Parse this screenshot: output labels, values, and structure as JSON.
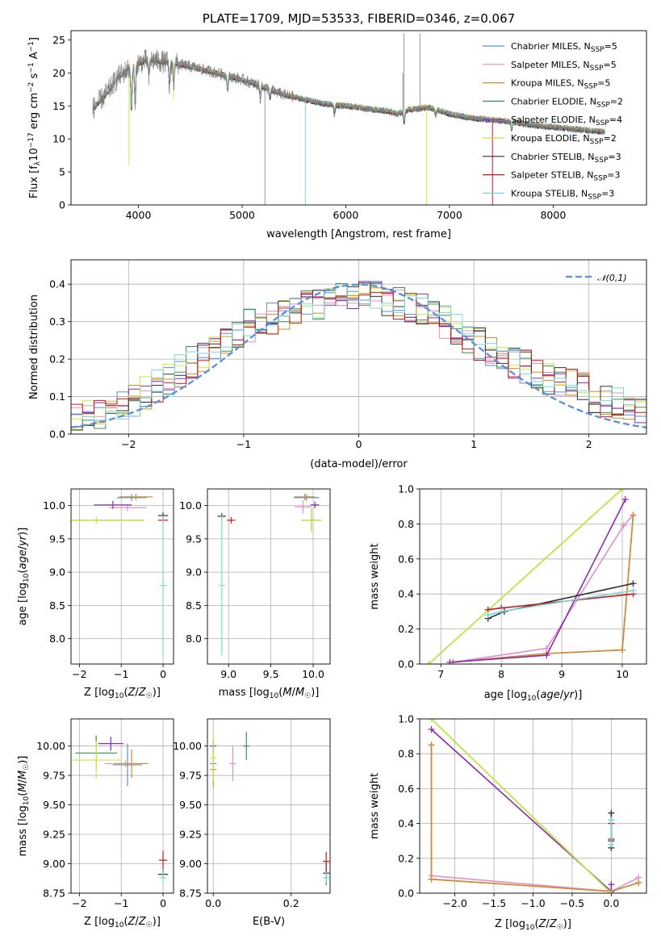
{
  "colors": {
    "Chabrier MILES": "#5b8fd6",
    "Salpeter MILES": "#e38fc6",
    "Kroupa MILES": "#d98a2b",
    "Chabrier ELODIE": "#3f8f55",
    "Salpeter ELODIE": "#8b2bb0",
    "Kroupa ELODIE": "#c8ea3c",
    "Chabrier STELIB": "#333333",
    "Salpeter STELIB": "#c81818",
    "Kroupa STELIB": "#7ad8dc",
    "normal": "#5b8fd6",
    "data": "#808080",
    "grid": "#b0b0b0"
  },
  "chart_data": [
    {
      "id": "spectrum",
      "type": "line",
      "title": "PLATE=1709, MJD=53533, FIBERID=0346, z=0.067",
      "xlabel": "wavelength [Angstrom, rest frame]",
      "ylabel": "Flux [f_λ 10^-17 erg cm^-2 s^-1 A^-1]",
      "xlim": [
        3350,
        8900
      ],
      "ylim": [
        0,
        26.4
      ],
      "xticks": [
        4000,
        5000,
        6000,
        7000,
        8000
      ],
      "yticks": [
        0,
        5,
        10,
        15,
        20,
        25
      ],
      "grid": false,
      "legend_position": "top-right",
      "legend": [
        "Chabrier MILES, N_SSP=5",
        "Salpeter MILES, N_SSP=5",
        "Kroupa MILES, N_SSP=5",
        "Chabrier ELODIE, N_SSP=2",
        "Salpeter ELODIE, N_SSP=4",
        "Kroupa ELODIE, N_SSP=2",
        "Chabrier STELIB, N_SSP=3",
        "Salpeter STELIB, N_SSP=3",
        "Kroupa STELIB, N_SSP=3"
      ],
      "continuum": [
        [
          3560,
          14.6
        ],
        [
          3700,
          17.0
        ],
        [
          3800,
          19.3
        ],
        [
          3900,
          20.6
        ],
        [
          4000,
          21.5
        ],
        [
          4100,
          22.0
        ],
        [
          4200,
          21.8
        ],
        [
          4400,
          21.3
        ],
        [
          4600,
          20.6
        ],
        [
          4800,
          19.8
        ],
        [
          5000,
          19.0
        ],
        [
          5200,
          17.9
        ],
        [
          5400,
          16.7
        ],
        [
          5600,
          16.0
        ],
        [
          5800,
          15.3
        ],
        [
          6000,
          15.0
        ],
        [
          6200,
          14.6
        ],
        [
          6400,
          14.2
        ],
        [
          6500,
          13.8
        ],
        [
          6600,
          14.4
        ],
        [
          6800,
          14.8
        ],
        [
          7000,
          13.8
        ],
        [
          7200,
          13.2
        ],
        [
          7400,
          12.9
        ],
        [
          7600,
          12.6
        ],
        [
          7800,
          12.1
        ],
        [
          8000,
          11.8
        ],
        [
          8200,
          11.5
        ],
        [
          8400,
          11.2
        ],
        [
          8500,
          11.1
        ]
      ]
    },
    {
      "id": "residuals",
      "type": "line",
      "xlabel": "(data-model)/error",
      "ylabel": "Normed distribution",
      "xlim": [
        -2.5,
        2.5
      ],
      "ylim": [
        0,
        0.465
      ],
      "xticks": [
        -2,
        -1,
        0,
        1,
        2
      ],
      "yticks": [
        0.0,
        0.1,
        0.2,
        0.3,
        0.4
      ],
      "grid": true,
      "legend_position": "top-right",
      "legend": [
        "𝒩(0,1)"
      ],
      "histogram_profile": [
        0.04,
        0.05,
        0.06,
        0.07,
        0.08,
        0.09,
        0.11,
        0.13,
        0.15,
        0.17,
        0.19,
        0.21,
        0.23,
        0.25,
        0.27,
        0.29,
        0.3,
        0.31,
        0.32,
        0.33,
        0.34,
        0.35,
        0.35,
        0.36,
        0.36,
        0.37,
        0.37,
        0.36,
        0.35,
        0.34,
        0.33,
        0.32,
        0.3,
        0.28,
        0.26,
        0.24,
        0.22,
        0.21,
        0.19,
        0.18,
        0.16,
        0.15,
        0.14,
        0.13,
        0.12,
        0.1,
        0.09,
        0.08,
        0.07,
        0.06
      ]
    },
    {
      "id": "age_vs_Z",
      "type": "scatter",
      "xlabel": "Z [log10(Z/Z☉)]",
      "ylabel": "age [log10(age/yr)]",
      "xlim": [
        -2.2,
        0.25
      ],
      "ylim": [
        7.62,
        10.25
      ],
      "xticks": [
        -2,
        -1,
        0
      ],
      "yticks": [
        8.0,
        8.5,
        9.0,
        9.5,
        10.0
      ],
      "grid": true,
      "points": [
        {
          "s": "Chabrier MILES",
          "x": -0.75,
          "y": 10.12,
          "ex": 0.35,
          "ey": 0.05
        },
        {
          "s": "Salpeter MILES",
          "x": -0.85,
          "y": 9.97,
          "ex": 0.45,
          "ey": 0.05
        },
        {
          "s": "Kroupa MILES",
          "x": -0.65,
          "y": 10.13,
          "ex": 0.4,
          "ey": 0.04
        },
        {
          "s": "Chabrier ELODIE",
          "x": -1.6,
          "y": 9.78,
          "ex": 1.15,
          "ey": 0.0
        },
        {
          "s": "Salpeter ELODIE",
          "x": -1.2,
          "y": 10.01,
          "ex": 0.45,
          "ey": 0.06
        },
        {
          "s": "Kroupa ELODIE",
          "x": -1.6,
          "y": 9.78,
          "ex": 1.15,
          "ey": 0.0
        },
        {
          "s": "Chabrier STELIB",
          "x": 0.0,
          "y": 9.85,
          "ex": 0.12,
          "ey": 0.04
        },
        {
          "s": "Salpeter STELIB",
          "x": 0.0,
          "y": 9.78,
          "ex": 0.12,
          "ey": 0.04
        },
        {
          "s": "Kroupa STELIB",
          "x": 0.0,
          "y": 8.8,
          "ex": 0.05,
          "ey": 1.05
        }
      ]
    },
    {
      "id": "age_vs_mass",
      "type": "scatter",
      "xlabel": "mass [log10(M/M☉)]",
      "ylabel": "",
      "xlim": [
        8.75,
        10.2
      ],
      "ylim": [
        7.62,
        10.25
      ],
      "xticks": [
        9.0,
        9.5,
        10.0
      ],
      "yticks": [
        8.0,
        8.5,
        9.0,
        9.5,
        10.0
      ],
      "grid": true,
      "points": [
        {
          "s": "Chabrier MILES",
          "x": 9.92,
          "y": 10.12,
          "ex": 0.15,
          "ey": 0.0
        },
        {
          "s": "Salpeter MILES",
          "x": 9.88,
          "y": 9.98,
          "ex": 0.1,
          "ey": 0.1
        },
        {
          "s": "Kroupa MILES",
          "x": 9.9,
          "y": 10.13,
          "ex": 0.12,
          "ey": 0.0
        },
        {
          "s": "Chabrier ELODIE",
          "x": 9.98,
          "y": 9.78,
          "ex": 0.12,
          "ey": 0.18
        },
        {
          "s": "Salpeter ELODIE",
          "x": 10.02,
          "y": 10.01,
          "ex": 0.05,
          "ey": 0.05
        },
        {
          "s": "Kroupa ELODIE",
          "x": 9.98,
          "y": 9.78,
          "ex": 0.12,
          "ey": 0.18
        },
        {
          "s": "Chabrier STELIB",
          "x": 8.92,
          "y": 9.84,
          "ex": 0.05,
          "ey": 0.04
        },
        {
          "s": "Salpeter STELIB",
          "x": 9.03,
          "y": 9.78,
          "ex": 0.05,
          "ey": 0.0
        },
        {
          "s": "Kroupa STELIB",
          "x": 8.92,
          "y": 8.8,
          "ex": 0.0,
          "ey": 1.05
        }
      ]
    },
    {
      "id": "weight_vs_age",
      "type": "line",
      "xlabel": "age [log10(age/yr)]",
      "ylabel": "mass weight",
      "xlim": [
        6.65,
        10.4
      ],
      "ylim": [
        0,
        1.0
      ],
      "xticks": [
        7,
        8,
        9,
        10
      ],
      "yticks": [
        0.0,
        0.2,
        0.4,
        0.6,
        0.8,
        1.0
      ],
      "grid": true,
      "series": [
        {
          "s": "Chabrier MILES",
          "points": [
            [
              7.2,
              0.01
            ],
            [
              8.75,
              0.06
            ],
            [
              10.0,
              0.08
            ],
            [
              10.18,
              0.85
            ]
          ]
        },
        {
          "s": "Salpeter MILES",
          "points": [
            [
              7.2,
              0.01
            ],
            [
              8.75,
              0.09
            ],
            [
              10.02,
              0.79
            ],
            [
              10.18,
              0.85
            ]
          ]
        },
        {
          "s": "Kroupa MILES",
          "points": [
            [
              7.2,
              0.01
            ],
            [
              8.75,
              0.06
            ],
            [
              10.0,
              0.08
            ],
            [
              10.18,
              0.85
            ]
          ]
        },
        {
          "s": "Chabrier ELODIE",
          "points": [
            [
              6.8,
              0.0
            ],
            [
              10.0,
              1.0
            ]
          ]
        },
        {
          "s": "Salpeter ELODIE",
          "points": [
            [
              7.15,
              0.01
            ],
            [
              8.75,
              0.05
            ],
            [
              10.05,
              0.94
            ]
          ]
        },
        {
          "s": "Kroupa ELODIE",
          "points": [
            [
              6.8,
              0.0
            ],
            [
              10.0,
              1.0
            ]
          ]
        },
        {
          "s": "Chabrier STELIB",
          "points": [
            [
              7.78,
              0.26
            ],
            [
              8.05,
              0.3
            ],
            [
              10.18,
              0.46
            ]
          ]
        },
        {
          "s": "Salpeter STELIB",
          "points": [
            [
              7.78,
              0.31
            ],
            [
              8.0,
              0.32
            ],
            [
              10.18,
              0.4
            ]
          ]
        },
        {
          "s": "Kroupa STELIB",
          "points": [
            [
              7.78,
              0.28
            ],
            [
              8.0,
              0.3
            ],
            [
              10.18,
              0.42
            ]
          ]
        }
      ]
    },
    {
      "id": "mass_vs_Z",
      "type": "scatter",
      "xlabel": "Z [log10(Z/Z☉)]",
      "ylabel": "mass [log10(M/M☉)]",
      "xlim": [
        -2.2,
        0.25
      ],
      "ylim": [
        8.75,
        10.23
      ],
      "xticks": [
        -2,
        -1,
        0
      ],
      "yticks": [
        8.75,
        9.0,
        9.25,
        9.5,
        9.75,
        10.0
      ],
      "grid": true,
      "points": [
        {
          "s": "Chabrier MILES",
          "x": -0.85,
          "y": 9.84,
          "ex": 0.35,
          "ey": 0.18
        },
        {
          "s": "Salpeter MILES",
          "x": -0.9,
          "y": 9.85,
          "ex": 0.5,
          "ey": 0.0
        },
        {
          "s": "Kroupa MILES",
          "x": -0.75,
          "y": 9.85,
          "ex": 0.4,
          "ey": 0.12
        },
        {
          "s": "Chabrier ELODIE",
          "x": -1.6,
          "y": 9.94,
          "ex": 0.5,
          "ey": 0.15
        },
        {
          "s": "Salpeter ELODIE",
          "x": -1.25,
          "y": 10.02,
          "ex": 0.3,
          "ey": 0.06
        },
        {
          "s": "Kroupa ELODIE",
          "x": -1.6,
          "y": 9.88,
          "ex": 0.6,
          "ey": 0.16
        },
        {
          "s": "Chabrier STELIB",
          "x": 0.0,
          "y": 8.91,
          "ex": 0.12,
          "ey": 0.0
        },
        {
          "s": "Salpeter STELIB",
          "x": 0.0,
          "y": 9.03,
          "ex": 0.1,
          "ey": 0.08
        },
        {
          "s": "Kroupa STELIB",
          "x": 0.0,
          "y": 8.88,
          "ex": 0.0,
          "ey": 0.05
        }
      ]
    },
    {
      "id": "mass_vs_EBV",
      "type": "scatter",
      "xlabel": "E(B-V)",
      "ylabel": "",
      "xlim": [
        -0.015,
        0.3
      ],
      "ylim": [
        8.75,
        10.23
      ],
      "xticks": [
        0.0,
        0.2
      ],
      "yticks": [
        8.75,
        9.0,
        9.25,
        9.5,
        9.75,
        10.0
      ],
      "grid": true,
      "points": [
        {
          "s": "Chabrier MILES",
          "x": 0.0,
          "y": 9.85,
          "ex": 0.0,
          "ey": 0.15
        },
        {
          "s": "Salpeter MILES",
          "x": 0.05,
          "y": 9.85,
          "ex": 0.0,
          "ey": 0.15
        },
        {
          "s": "Kroupa MILES",
          "x": 0.0,
          "y": 9.8,
          "ex": 0.0,
          "ey": 0.15
        },
        {
          "s": "Chabrier ELODIE",
          "x": 0.085,
          "y": 10.0,
          "ex": 0.0,
          "ey": 0.12
        },
        {
          "s": "Salpeter ELODIE",
          "x": 0.0,
          "y": 10.0,
          "ex": 0.0,
          "ey": 0.05
        },
        {
          "s": "Kroupa ELODIE",
          "x": 0.0,
          "y": 9.9,
          "ex": 0.0,
          "ey": 0.2
        },
        {
          "s": "Chabrier STELIB",
          "x": 0.29,
          "y": 8.92,
          "ex": 0.0,
          "ey": 0.1
        },
        {
          "s": "Salpeter STELIB",
          "x": 0.29,
          "y": 9.02,
          "ex": 0.0,
          "ey": 0.08
        },
        {
          "s": "Kroupa STELIB",
          "x": 0.29,
          "y": 8.88,
          "ex": 0.0,
          "ey": 0.05
        }
      ]
    },
    {
      "id": "weight_vs_Z",
      "type": "line",
      "xlabel": "Z [log10(Z/Z☉)]",
      "ylabel": "mass weight",
      "xlim": [
        -2.45,
        0.45
      ],
      "ylim": [
        0,
        1.0
      ],
      "xticks": [
        -2.0,
        -1.5,
        -1.0,
        -0.5,
        0.0
      ],
      "yticks": [
        0.0,
        0.2,
        0.4,
        0.6,
        0.8,
        1.0
      ],
      "grid": true,
      "series": [
        {
          "s": "Chabrier MILES",
          "points": [
            [
              -2.3,
              0.85
            ],
            [
              -2.3,
              0.08
            ],
            [
              0.0,
              0.01
            ],
            [
              0.35,
              0.06
            ]
          ]
        },
        {
          "s": "Salpeter MILES",
          "points": [
            [
              -2.3,
              0.1
            ],
            [
              0.0,
              0.01
            ],
            [
              0.35,
              0.09
            ]
          ]
        },
        {
          "s": "Kroupa MILES",
          "points": [
            [
              -2.3,
              0.85
            ],
            [
              -2.3,
              0.08
            ],
            [
              0.0,
              0.01
            ],
            [
              0.35,
              0.06
            ]
          ]
        },
        {
          "s": "Chabrier ELODIE",
          "points": [
            [
              -2.3,
              1.0
            ],
            [
              0.0,
              0.0
            ]
          ]
        },
        {
          "s": "Salpeter ELODIE",
          "points": [
            [
              -2.3,
              0.94
            ],
            [
              0.0,
              0.01
            ],
            [
              0.0,
              0.05
            ]
          ]
        },
        {
          "s": "Kroupa ELODIE",
          "points": [
            [
              -2.3,
              1.0
            ],
            [
              0.0,
              0.0
            ]
          ]
        },
        {
          "s": "Chabrier STELIB",
          "points": [
            [
              0.0,
              0.26
            ],
            [
              0.0,
              0.3
            ],
            [
              0.0,
              0.46
            ]
          ]
        },
        {
          "s": "Salpeter STELIB",
          "points": [
            [
              0.0,
              0.31
            ],
            [
              0.0,
              0.4
            ]
          ]
        },
        {
          "s": "Kroupa STELIB",
          "points": [
            [
              0.0,
              0.28
            ],
            [
              0.0,
              0.42
            ]
          ]
        }
      ]
    }
  ]
}
